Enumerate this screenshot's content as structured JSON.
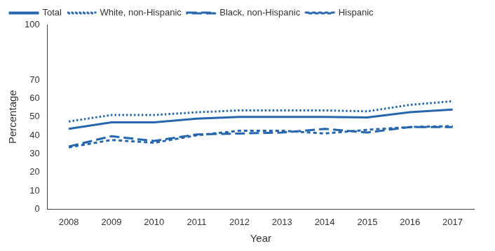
{
  "chart_data": {
    "type": "line",
    "x_label": "Year",
    "y_label": "Percentage",
    "categories": [
      "2008",
      "2009",
      "2010",
      "2011",
      "2012",
      "2013",
      "2014",
      "2015",
      "2016",
      "2017"
    ],
    "series": [
      {
        "name": "Total",
        "color": "#2566ad",
        "line_style": "solid",
        "values": [
          43.5,
          47,
          47,
          49,
          50,
          50,
          50,
          49.7,
          52.5,
          54
        ]
      },
      {
        "name": "White, non-Hispanic",
        "color": "#2566ad",
        "line_style": "dotted",
        "values": [
          47.5,
          51,
          51,
          52.5,
          53.5,
          53.5,
          53.5,
          53,
          56.5,
          58.5
        ]
      },
      {
        "name": "Black, non-Hispanic",
        "color": "#2566ad",
        "line_style": "dashed",
        "values": [
          34,
          39.5,
          37,
          40.5,
          41,
          41.5,
          43.5,
          41.5,
          44.5,
          44.5
        ]
      },
      {
        "name": "Hispanic",
        "color": "#2566ad",
        "line_style": "short_dashed",
        "values": [
          33.5,
          37.5,
          36,
          40,
          42.5,
          42.5,
          41,
          43,
          44.5,
          45
        ]
      }
    ],
    "ylim": [
      0,
      100
    ],
    "yticks": [
      0,
      10,
      20,
      30,
      40,
      50,
      60,
      70,
      100
    ],
    "grid": false,
    "legend": "upper left"
  }
}
